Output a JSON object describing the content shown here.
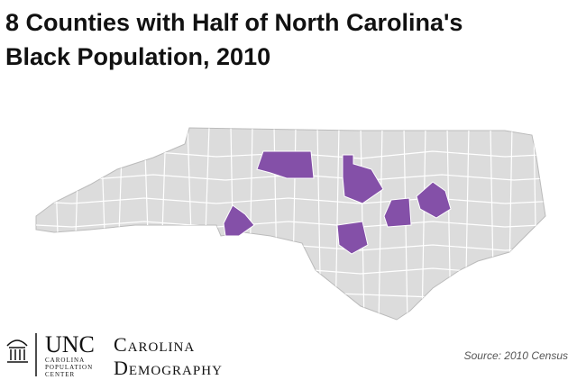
{
  "header": {
    "title_lines": [
      "8 Counties with Half of North Carolina's",
      "Black Population, 2010"
    ]
  },
  "footer": {
    "logo_short": "UNC",
    "logo_sub": "CAROLINA POPULATION CENTER",
    "brand_line1": "Carolina",
    "brand_line2": "Demography",
    "source": "Source: 2010 Census"
  }
}
